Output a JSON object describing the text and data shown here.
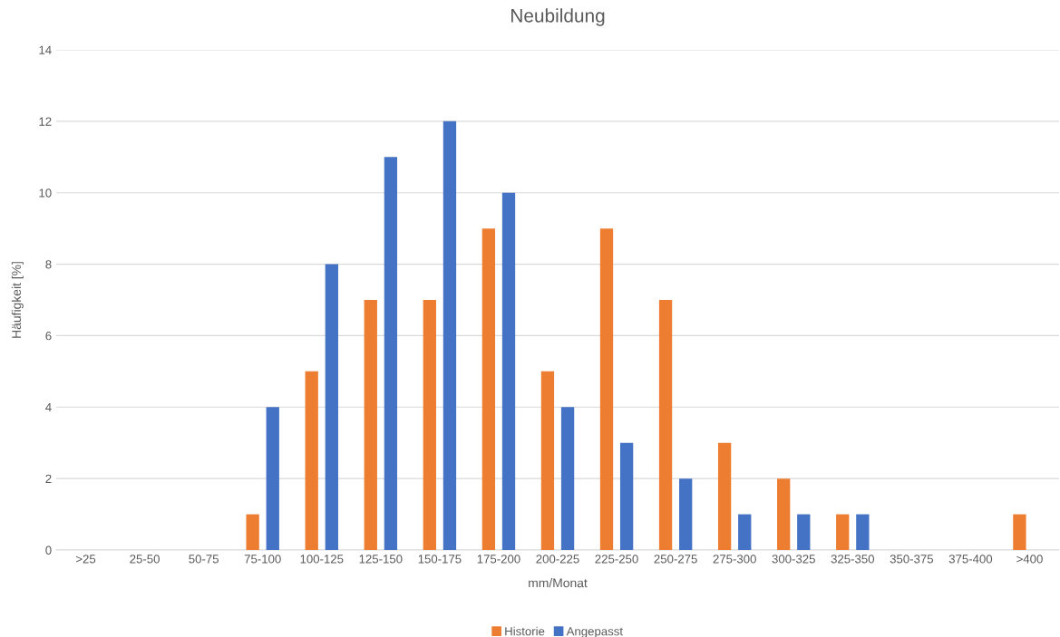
{
  "chart_data": {
    "type": "bar",
    "title": "Neubildung",
    "xlabel": "mm/Monat",
    "ylabel": "Häufigkeit [%]",
    "categories": [
      ">25",
      "25-50",
      "50-75",
      "75-100",
      "100-125",
      "125-150",
      "150-175",
      "175-200",
      "200-225",
      "225-250",
      "250-275",
      "275-300",
      "300-325",
      "325-350",
      "350-375",
      "375-400",
      ">400"
    ],
    "series": [
      {
        "name": "Historie",
        "color": "#ed7d31",
        "values": [
          0,
          0,
          0,
          1,
          5,
          7,
          7,
          9,
          5,
          9,
          7,
          3,
          2,
          1,
          0,
          0,
          1
        ]
      },
      {
        "name": "Angepasst",
        "color": "#4472c4",
        "values": [
          0,
          0,
          0,
          4,
          8,
          11,
          12,
          10,
          4,
          3,
          2,
          1,
          1,
          1,
          0,
          0,
          0
        ]
      }
    ],
    "ylim": [
      0,
      14
    ],
    "yticks": [
      0,
      2,
      4,
      6,
      8,
      10,
      12,
      14
    ],
    "grid": "y",
    "legend": "bottom"
  }
}
